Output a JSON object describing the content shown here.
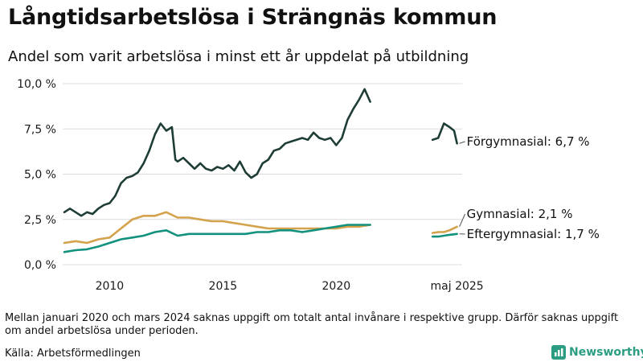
{
  "title": "Långtidsarbetslösa i Strängnäs kommun",
  "subtitle": "Andel som varit arbetslösa i minst ett år uppdelat på utbildning",
  "note": "Mellan januari 2020 och mars 2024 saknas uppgift om totalt antal invånare i respektive grupp. Därför saknas uppgift om andel arbetslösa under perioden.",
  "source": "Källa: Arbetsförmedlingen",
  "brand": "Newsworthy",
  "colors": {
    "forgymnasial": "#1e3d37",
    "gymnasial": "#d4a24c",
    "eftergymnasial": "#13917f",
    "brand": "#2a9d82"
  },
  "chart_data": {
    "type": "line",
    "title": "Långtidsarbetslösa i Strängnäs kommun",
    "xlabel": "",
    "ylabel": "",
    "ylim": [
      0,
      10
    ],
    "y_ticks": [
      {
        "value": 0,
        "label": "0,0 %"
      },
      {
        "value": 2.5,
        "label": "2,5 %"
      },
      {
        "value": 5,
        "label": "5,0 %"
      },
      {
        "value": 7.5,
        "label": "7,5 %"
      },
      {
        "value": 10,
        "label": "10,0 %"
      }
    ],
    "x_ticks": [
      {
        "value": 2010,
        "label": "2010"
      },
      {
        "value": 2015,
        "label": "2015"
      },
      {
        "value": 2020,
        "label": "2020"
      },
      {
        "value": 2025.33,
        "label": "maj 2025"
      }
    ],
    "grid": true,
    "series": [
      {
        "name": "Förgymnasial",
        "end_label": "Förgymnasial: 6,7 %",
        "color_key": "forgymnasial",
        "segments": [
          [
            [
              2008.0,
              2.9
            ],
            [
              2008.25,
              3.1
            ],
            [
              2008.5,
              2.9
            ],
            [
              2008.75,
              2.7
            ],
            [
              2009.0,
              2.9
            ],
            [
              2009.25,
              2.8
            ],
            [
              2009.5,
              3.1
            ],
            [
              2009.75,
              3.3
            ],
            [
              2010.0,
              3.4
            ],
            [
              2010.25,
              3.8
            ],
            [
              2010.5,
              4.5
            ],
            [
              2010.75,
              4.8
            ],
            [
              2011.0,
              4.9
            ],
            [
              2011.25,
              5.1
            ],
            [
              2011.5,
              5.6
            ],
            [
              2011.75,
              6.3
            ],
            [
              2012.0,
              7.2
            ],
            [
              2012.25,
              7.8
            ],
            [
              2012.5,
              7.4
            ],
            [
              2012.75,
              7.6
            ],
            [
              2012.9,
              5.8
            ],
            [
              2013.0,
              5.7
            ],
            [
              2013.25,
              5.9
            ],
            [
              2013.5,
              5.6
            ],
            [
              2013.75,
              5.3
            ],
            [
              2014.0,
              5.6
            ],
            [
              2014.25,
              5.3
            ],
            [
              2014.5,
              5.2
            ],
            [
              2014.75,
              5.4
            ],
            [
              2015.0,
              5.3
            ],
            [
              2015.25,
              5.5
            ],
            [
              2015.5,
              5.2
            ],
            [
              2015.75,
              5.7
            ],
            [
              2016.0,
              5.1
            ],
            [
              2016.25,
              4.8
            ],
            [
              2016.5,
              5.0
            ],
            [
              2016.75,
              5.6
            ],
            [
              2017.0,
              5.8
            ],
            [
              2017.25,
              6.3
            ],
            [
              2017.5,
              6.4
            ],
            [
              2017.75,
              6.7
            ],
            [
              2018.0,
              6.8
            ],
            [
              2018.25,
              6.9
            ],
            [
              2018.5,
              7.0
            ],
            [
              2018.75,
              6.9
            ],
            [
              2019.0,
              7.3
            ],
            [
              2019.25,
              7.0
            ],
            [
              2019.5,
              6.9
            ],
            [
              2019.75,
              7.0
            ],
            [
              2020.0,
              6.6
            ],
            [
              2020.25,
              7.0
            ],
            [
              2020.5,
              8.0
            ],
            [
              2020.75,
              8.6
            ],
            [
              2021.0,
              9.1
            ],
            [
              2021.25,
              9.7
            ],
            [
              2021.5,
              9.0
            ]
          ],
          [
            [
              2024.25,
              6.9
            ],
            [
              2024.5,
              7.0
            ],
            [
              2024.75,
              7.8
            ],
            [
              2025.0,
              7.6
            ],
            [
              2025.2,
              7.4
            ],
            [
              2025.33,
              6.7
            ]
          ]
        ]
      },
      {
        "name": "Gymnasial",
        "end_label": "Gymnasial: 2,1 %",
        "color_key": "gymnasial",
        "segments": [
          [
            [
              2008.0,
              1.2
            ],
            [
              2008.5,
              1.3
            ],
            [
              2009.0,
              1.2
            ],
            [
              2009.5,
              1.4
            ],
            [
              2010.0,
              1.5
            ],
            [
              2010.5,
              2.0
            ],
            [
              2011.0,
              2.5
            ],
            [
              2011.5,
              2.7
            ],
            [
              2012.0,
              2.7
            ],
            [
              2012.5,
              2.9
            ],
            [
              2013.0,
              2.6
            ],
            [
              2013.5,
              2.6
            ],
            [
              2014.0,
              2.5
            ],
            [
              2014.5,
              2.4
            ],
            [
              2015.0,
              2.4
            ],
            [
              2015.5,
              2.3
            ],
            [
              2016.0,
              2.2
            ],
            [
              2016.5,
              2.1
            ],
            [
              2017.0,
              2.0
            ],
            [
              2017.5,
              2.0
            ],
            [
              2018.0,
              2.0
            ],
            [
              2018.5,
              2.0
            ],
            [
              2019.0,
              2.0
            ],
            [
              2019.5,
              2.0
            ],
            [
              2020.0,
              2.0
            ],
            [
              2020.5,
              2.1
            ],
            [
              2021.0,
              2.1
            ],
            [
              2021.5,
              2.2
            ]
          ],
          [
            [
              2024.25,
              1.75
            ],
            [
              2024.5,
              1.8
            ],
            [
              2024.75,
              1.8
            ],
            [
              2025.0,
              1.9
            ],
            [
              2025.33,
              2.1
            ]
          ]
        ]
      },
      {
        "name": "Eftergymnasial",
        "end_label": "Eftergymnasial: 1,7 %",
        "color_key": "eftergymnasial",
        "segments": [
          [
            [
              2008.0,
              0.7
            ],
            [
              2008.5,
              0.8
            ],
            [
              2009.0,
              0.85
            ],
            [
              2009.5,
              1.0
            ],
            [
              2010.0,
              1.2
            ],
            [
              2010.5,
              1.4
            ],
            [
              2011.0,
              1.5
            ],
            [
              2011.5,
              1.6
            ],
            [
              2012.0,
              1.8
            ],
            [
              2012.5,
              1.9
            ],
            [
              2013.0,
              1.6
            ],
            [
              2013.5,
              1.7
            ],
            [
              2014.0,
              1.7
            ],
            [
              2014.5,
              1.7
            ],
            [
              2015.0,
              1.7
            ],
            [
              2015.5,
              1.7
            ],
            [
              2016.0,
              1.7
            ],
            [
              2016.5,
              1.8
            ],
            [
              2017.0,
              1.8
            ],
            [
              2017.5,
              1.9
            ],
            [
              2018.0,
              1.9
            ],
            [
              2018.5,
              1.8
            ],
            [
              2019.0,
              1.9
            ],
            [
              2019.5,
              2.0
            ],
            [
              2020.0,
              2.1
            ],
            [
              2020.5,
              2.2
            ],
            [
              2021.0,
              2.2
            ],
            [
              2021.5,
              2.2
            ]
          ],
          [
            [
              2024.25,
              1.55
            ],
            [
              2024.5,
              1.55
            ],
            [
              2024.75,
              1.6
            ],
            [
              2025.0,
              1.65
            ],
            [
              2025.33,
              1.7
            ]
          ]
        ]
      }
    ]
  }
}
